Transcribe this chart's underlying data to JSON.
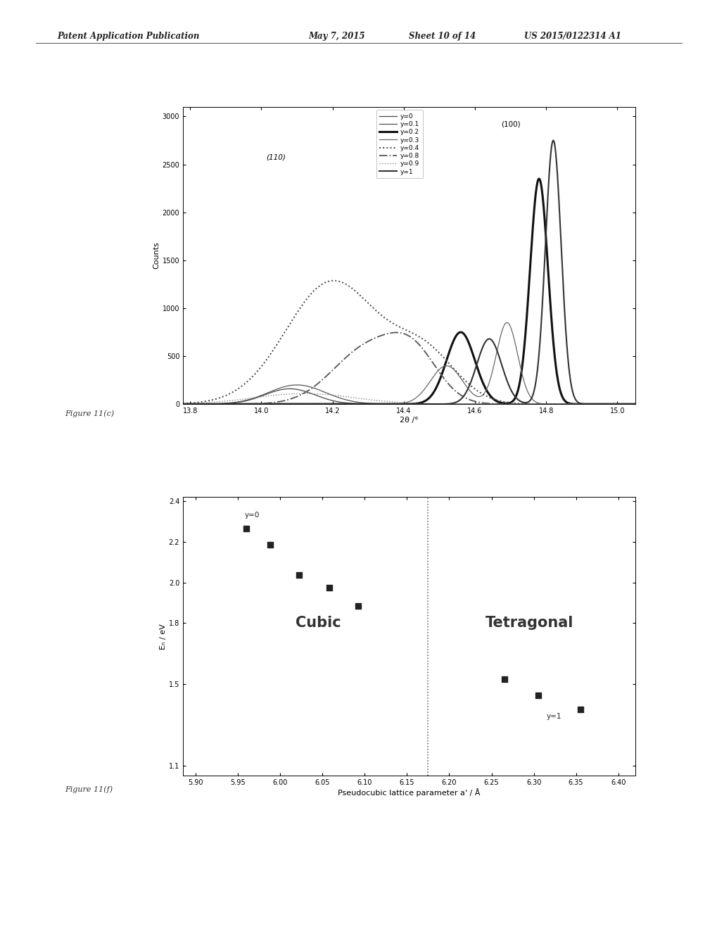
{
  "fig_width": 10.2,
  "fig_height": 13.2,
  "dpi": 100,
  "bg_color": "#ffffff",
  "header_text1": "Patent Application Publication",
  "header_text2": "May 7, 2015",
  "header_text3": "Sheet 10 of 14",
  "header_text4": "US 2015/0122314 A1",
  "top_plot": {
    "xlabel": "2θ /°",
    "ylabel": "Counts",
    "xlim": [
      13.78,
      15.05
    ],
    "ylim": [
      0,
      3100
    ],
    "xticks": [
      13.8,
      14.0,
      14.2,
      14.4,
      14.6,
      14.8,
      15.0
    ],
    "xtick_labels": [
      "13.8",
      "14.0",
      "14.2",
      "14.4",
      "14.6",
      "14.8",
      "15.0"
    ],
    "yticks": [
      0,
      500,
      1000,
      1500,
      2000,
      2500,
      3000
    ],
    "ytick_labels": [
      "0",
      "500",
      "1000",
      "1500",
      "2000",
      "2500",
      "3000"
    ],
    "annotation_left": "(110)",
    "annotation_right": "(100)",
    "legend_labels": [
      "y=0",
      "y=0.1",
      "y=0.2",
      "y=0.3",
      "y=0.4",
      "y=0.8",
      "y=0.9",
      "y=1"
    ],
    "figure_caption": "Figure 11(c)"
  },
  "bottom_plot": {
    "xlabel": "Pseudocubic lattice parameter a' / Å",
    "ylabel": "Eₙ / eV",
    "xlim": [
      5.885,
      6.42
    ],
    "ylim": [
      1.05,
      2.42
    ],
    "xticks": [
      5.9,
      5.95,
      6.0,
      6.05,
      6.1,
      6.15,
      6.2,
      6.25,
      6.3,
      6.35,
      6.4
    ],
    "xtick_labels": [
      "5.90",
      "5.95",
      "6.00",
      "6.05",
      "6.10",
      "6.15",
      "6.20",
      "6.25",
      "6.30",
      "6.35",
      "6.40"
    ],
    "yticks": [
      1.1,
      1.5,
      1.8,
      2.0,
      2.2,
      2.4
    ],
    "ytick_labels": [
      "1.1",
      "1.5",
      "1.8",
      "2.0",
      "2.2",
      "2.4"
    ],
    "cubic_label": "Cubic",
    "tetragonal_label": "Tetragonal",
    "vline_x": 6.175,
    "scatter_x": [
      5.96,
      5.988,
      6.022,
      6.058,
      6.092,
      6.265,
      6.305,
      6.355
    ],
    "scatter_y": [
      2.265,
      2.185,
      2.035,
      1.975,
      1.885,
      1.525,
      1.445,
      1.375
    ],
    "figure_caption": "Figure 11(f)"
  }
}
